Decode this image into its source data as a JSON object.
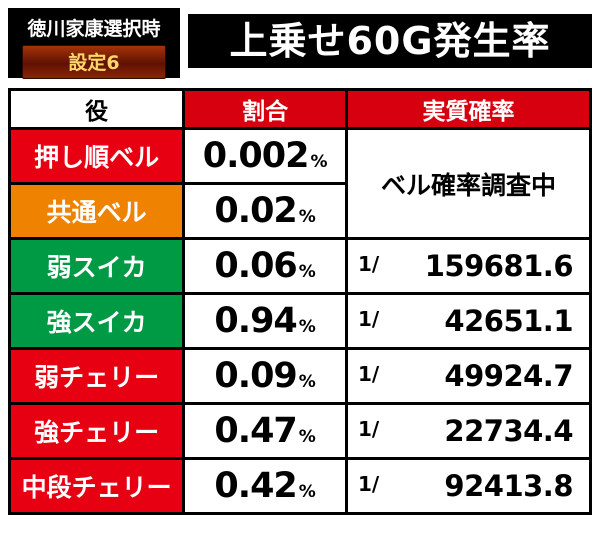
{
  "header": {
    "machine_label": "徳川家康選択時",
    "setting_label": "設定6",
    "title": "上乗せ60G発生率"
  },
  "table": {
    "columns": [
      "役",
      "割合",
      "実質確率"
    ],
    "units": {
      "percent": "%",
      "fraction": "1/"
    },
    "bell_note": "ベル確率調査中",
    "rows": [
      {
        "role": "押し順ベル",
        "color": "#e60012",
        "rate": "0.002",
        "prob": ""
      },
      {
        "role": "共通ベル",
        "color": "#ef8200",
        "rate": "0.02",
        "prob": ""
      },
      {
        "role": "弱スイカ",
        "color": "#009944",
        "rate": "0.06",
        "prob": "159681.6"
      },
      {
        "role": "強スイカ",
        "color": "#009944",
        "rate": "0.94",
        "prob": "42651.1"
      },
      {
        "role": "弱チェリー",
        "color": "#e60012",
        "rate": "0.09",
        "prob": "49924.7"
      },
      {
        "role": "強チェリー",
        "color": "#e60012",
        "rate": "0.47",
        "prob": "22734.4"
      },
      {
        "role": "中段チェリー",
        "color": "#e60012",
        "rate": "0.42",
        "prob": "92413.8"
      }
    ]
  },
  "colors": {
    "header_red": "#d7000f",
    "red": "#e60012",
    "orange": "#ef8200",
    "green": "#009944",
    "black": "#000000",
    "gold": "#ffd76a",
    "white": "#ffffff"
  },
  "chart_data": {
    "type": "table",
    "title": "上乗せ60G発生率",
    "subtitle": "徳川家康選択時 設定6",
    "columns": [
      "役",
      "割合",
      "実質確率"
    ],
    "rows": [
      [
        "押し順ベル",
        "0.002%",
        "ベル確率調査中"
      ],
      [
        "共通ベル",
        "0.02%",
        "ベル確率調査中"
      ],
      [
        "弱スイカ",
        "0.06%",
        "1/159681.6"
      ],
      [
        "強スイカ",
        "0.94%",
        "1/42651.1"
      ],
      [
        "弱チェリー",
        "0.09%",
        "1/49924.7"
      ],
      [
        "強チェリー",
        "0.47%",
        "1/22734.4"
      ],
      [
        "中段チェリー",
        "0.42%",
        "1/92413.8"
      ]
    ]
  }
}
